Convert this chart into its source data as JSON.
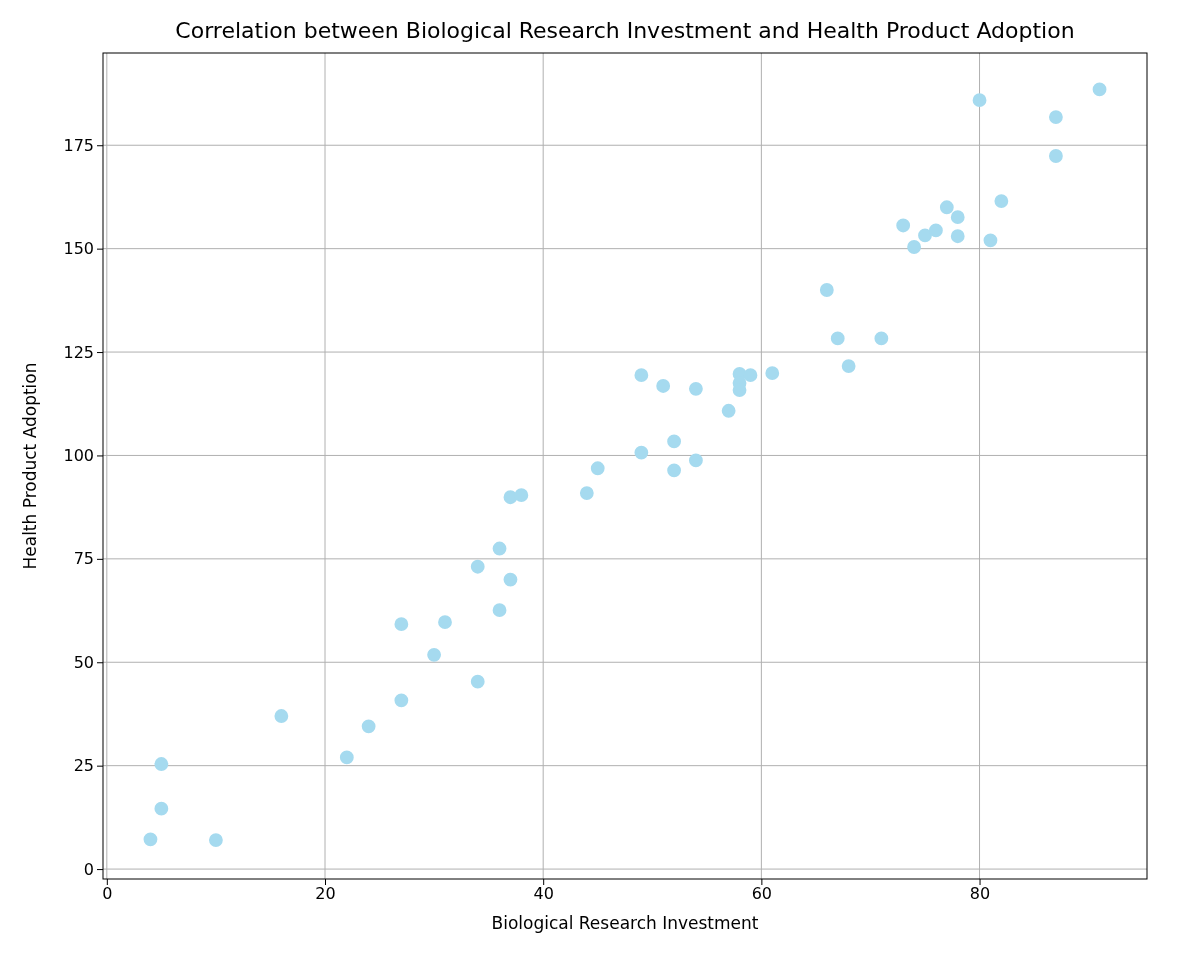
{
  "chart_data": {
    "type": "scatter",
    "title": "Correlation between Biological Research Investment and Health Product Adoption",
    "xlabel": "Biological Research Investment",
    "ylabel": "Health Product Adoption",
    "x": [
      4,
      5,
      5,
      10,
      16,
      22,
      24,
      27,
      27,
      30,
      31,
      34,
      34,
      36,
      36,
      37,
      37,
      38,
      44,
      45,
      49,
      49,
      51,
      52,
      52,
      54,
      54,
      57,
      58,
      58,
      58,
      59,
      61,
      66,
      67,
      68,
      71,
      73,
      74,
      75,
      76,
      77,
      78,
      78,
      80,
      81,
      82,
      87,
      87,
      91
    ],
    "series": [
      {
        "color": "#a5daef",
        "values": [
          7.2,
          25.4,
          14.6,
          7,
          37,
          27,
          34.5,
          40.8,
          59.2,
          51.8,
          59.7,
          45.3,
          73.1,
          62.6,
          77.5,
          70,
          89.9,
          90.4,
          90.9,
          96.9,
          100.7,
          119.4,
          116.8,
          103.4,
          96.4,
          116.1,
          98.8,
          110.8,
          119.7,
          117.5,
          115.8,
          119.4,
          119.9,
          140,
          128.3,
          121.6,
          128.3,
          155.6,
          150.4,
          153.2,
          154.4,
          160,
          157.6,
          153,
          185.9,
          152,
          161.5,
          181.8,
          172.4,
          188.5
        ]
      }
    ],
    "xlim": [
      -0.35,
      95.35
    ],
    "xticks": [
      0,
      20,
      40,
      60,
      80
    ],
    "ylim": [
      -2.4,
      197.3
    ],
    "yticks": [
      0,
      25,
      50,
      75,
      100,
      125,
      150,
      175
    ],
    "grid": true,
    "marker": "circle"
  }
}
